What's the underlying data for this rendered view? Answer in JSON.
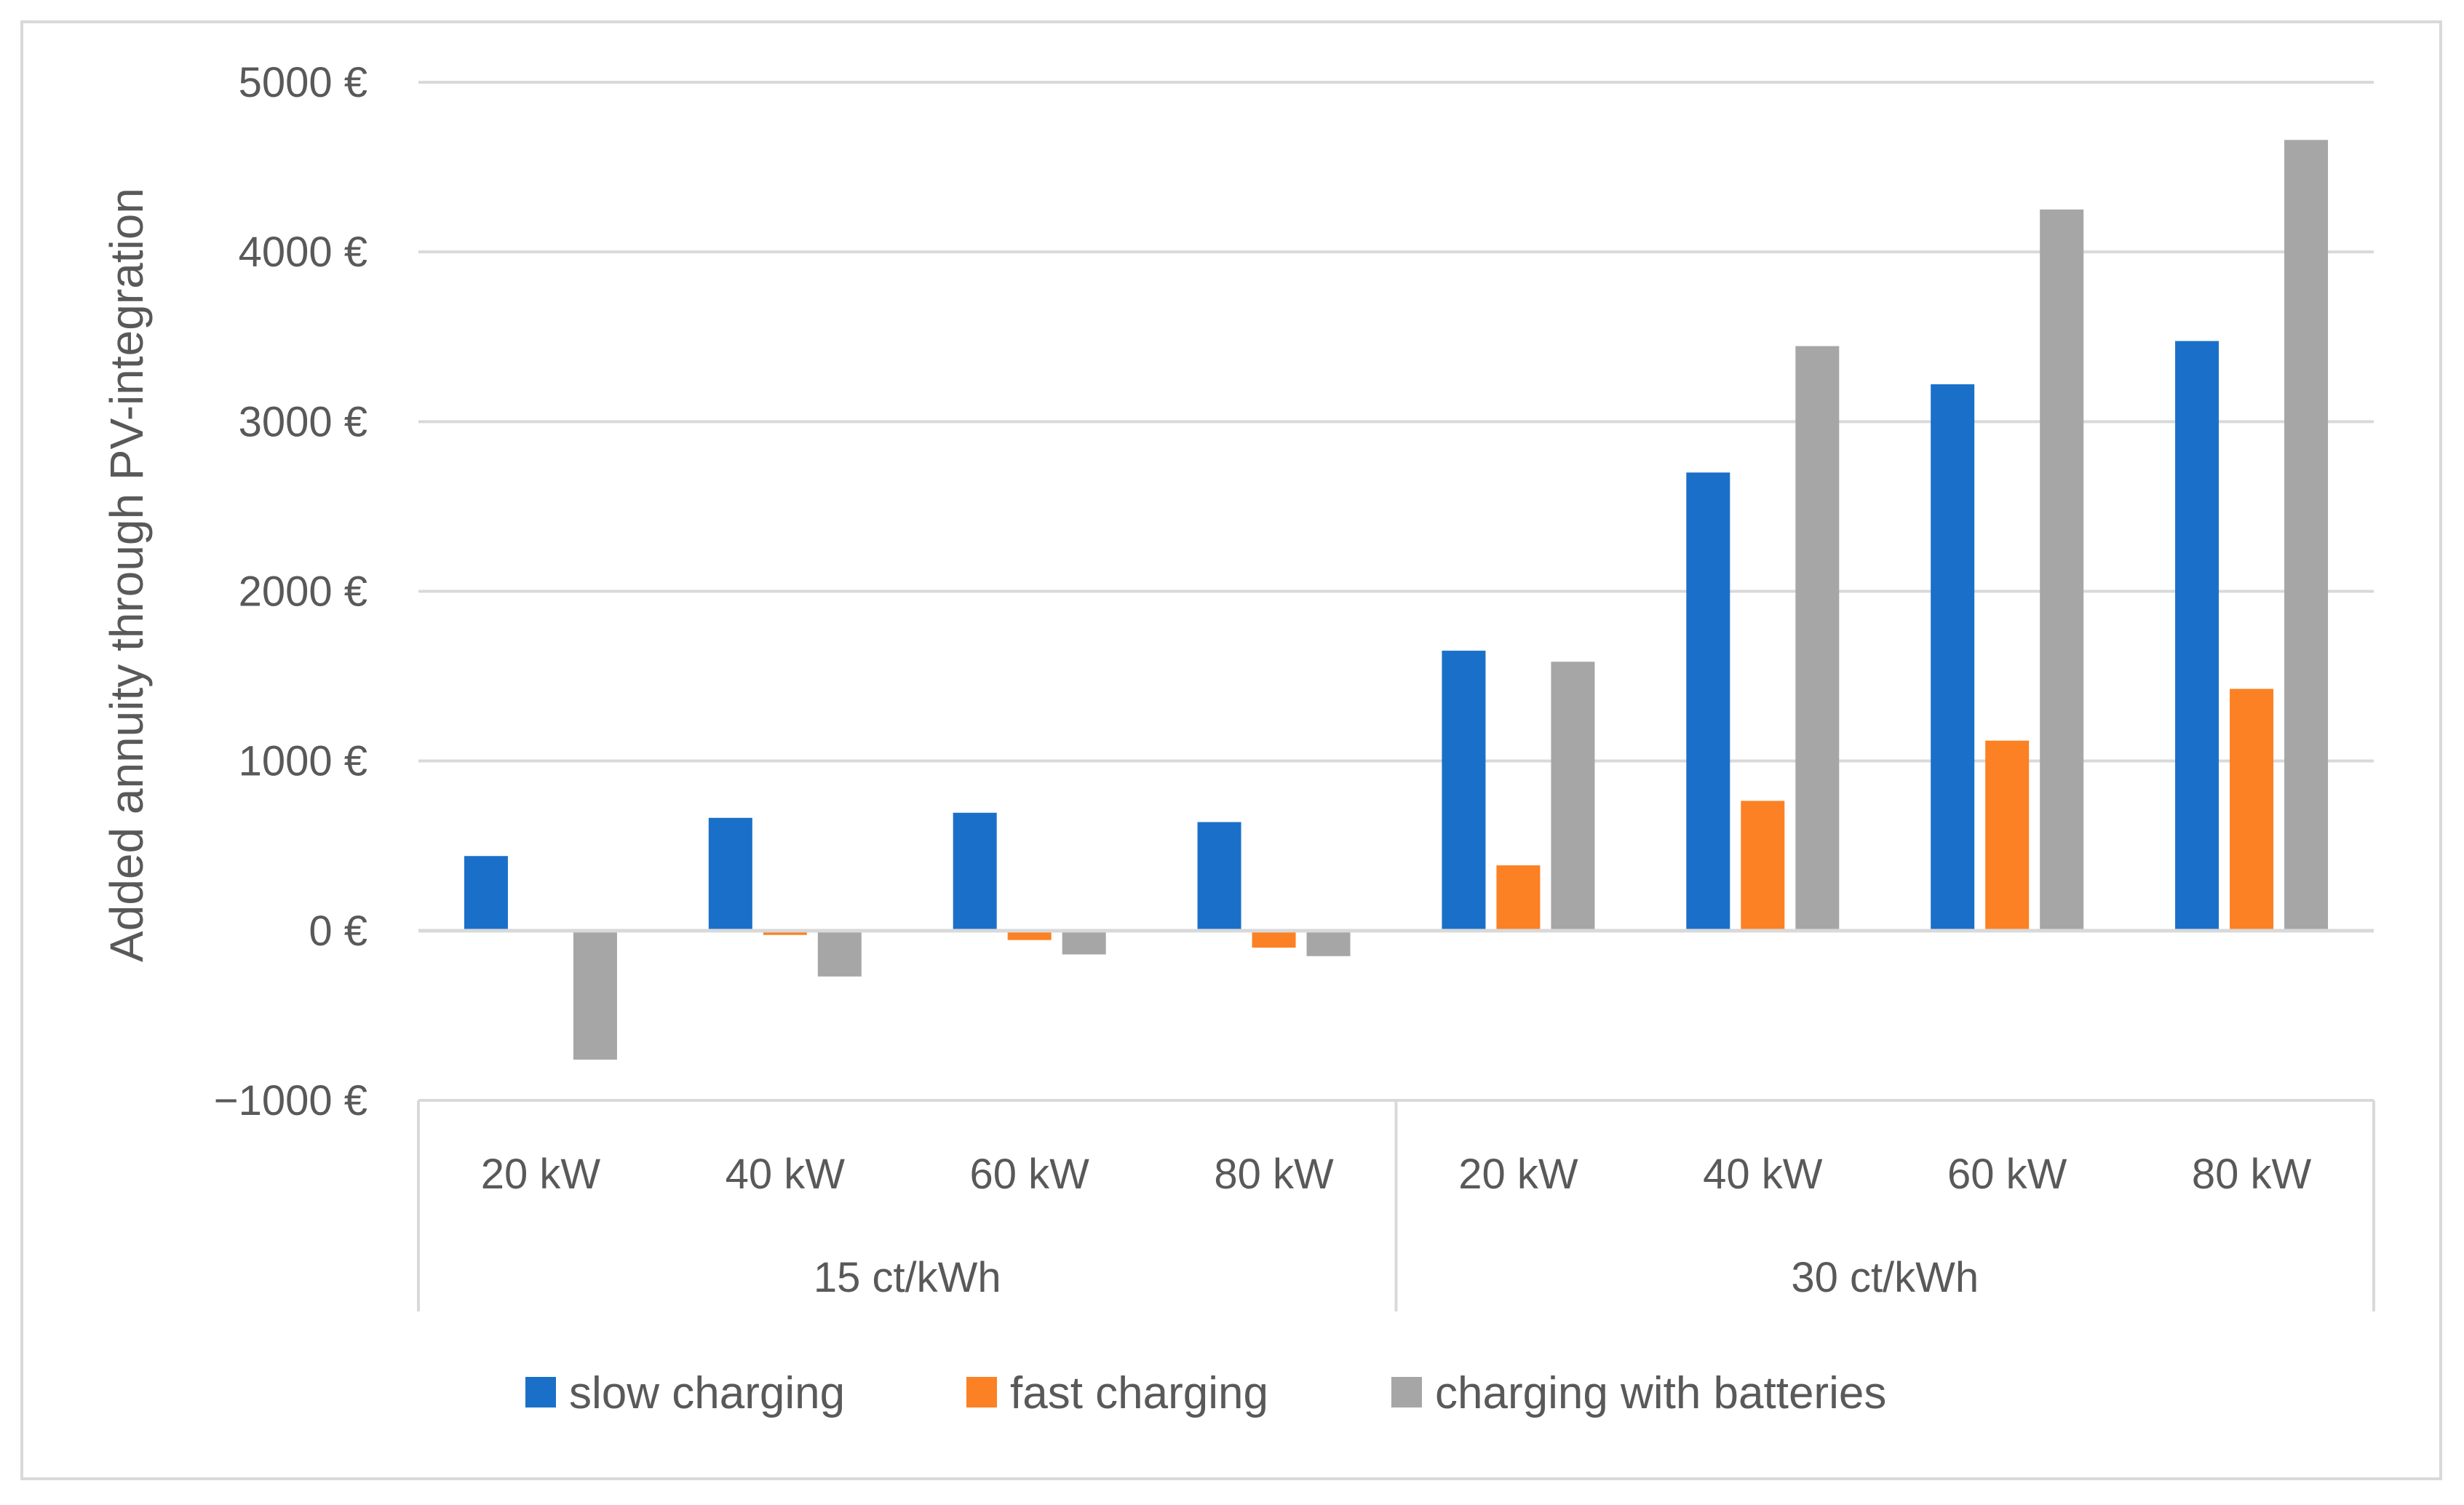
{
  "chart_data": {
    "type": "bar",
    "title": "",
    "xlabel": "",
    "ylabel": "Added annuity through PV-integration",
    "ylim": [
      -1000,
      5000
    ],
    "yticks": [
      -1000,
      0,
      1000,
      2000,
      3000,
      4000,
      5000
    ],
    "ytick_labels": [
      "−1000 €",
      "0 €",
      "1000 €",
      "2000 €",
      "3000 €",
      "4000 €",
      "5000 €"
    ],
    "grid": true,
    "legend_position": "bottom",
    "groups": [
      {
        "label": "15 ct/kWh",
        "categories": [
          "20 kW",
          "40 kW",
          "60 kW",
          "80 kW"
        ]
      },
      {
        "label": "30 ct/kWh",
        "categories": [
          "20 kW",
          "40 kW",
          "60 kW",
          "80 kW"
        ]
      }
    ],
    "categories": [
      "20 kW",
      "40 kW",
      "60 kW",
      "80 kW",
      "20 kW",
      "40 kW",
      "60 kW",
      "80 kW"
    ],
    "series": [
      {
        "name": "slow charging",
        "color": "#1a70c8",
        "values": [
          440,
          665,
          695,
          640,
          1650,
          2700,
          3220,
          3475
        ]
      },
      {
        "name": "fast charging",
        "color": "#fb8124",
        "values": [
          0,
          -25,
          -55,
          -100,
          385,
          765,
          1120,
          1425
        ]
      },
      {
        "name": "charging with batteries",
        "color": "#a6a6a6",
        "values": [
          -760,
          -270,
          -140,
          -150,
          1585,
          3445,
          4250,
          4660
        ]
      }
    ]
  }
}
